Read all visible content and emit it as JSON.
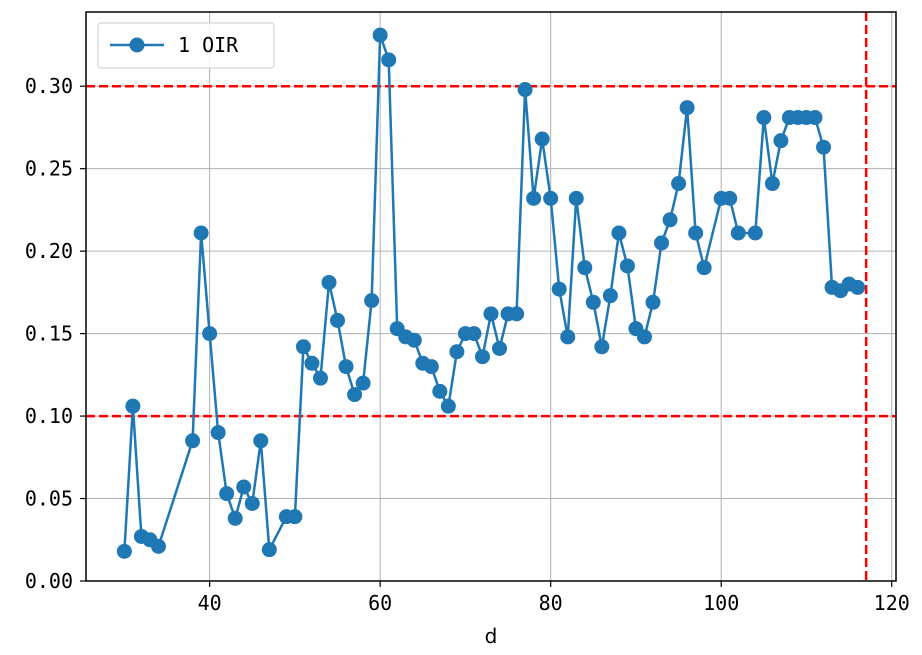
{
  "chart_data": {
    "type": "line",
    "title": "",
    "xlabel": "d",
    "ylabel": "",
    "xlim": [
      25.5,
      120.5
    ],
    "ylim": [
      0.0,
      0.345
    ],
    "xticks": [
      40,
      60,
      80,
      100,
      120
    ],
    "yticks": [
      0.0,
      0.05,
      0.1,
      0.15,
      0.2,
      0.25,
      0.3
    ],
    "ytick_labels": [
      "0.00",
      "0.05",
      "0.10",
      "0.15",
      "0.20",
      "0.25",
      "0.30"
    ],
    "grid": true,
    "legend": {
      "position": "top-left"
    },
    "series": [
      {
        "name": "1 OIR",
        "color": "#1f77b4",
        "marker": "circle",
        "x": [
          30,
          31,
          32,
          33,
          34,
          38,
          39,
          40,
          41,
          42,
          43,
          44,
          45,
          46,
          47,
          49,
          50,
          51,
          52,
          53,
          54,
          55,
          56,
          57,
          58,
          59,
          60,
          61,
          62,
          63,
          64,
          65,
          66,
          67,
          68,
          69,
          70,
          71,
          72,
          73,
          74,
          75,
          76,
          77,
          78,
          79,
          80,
          81,
          82,
          83,
          84,
          85,
          86,
          87,
          88,
          89,
          90,
          91,
          92,
          93,
          94,
          95,
          96,
          97,
          98,
          100,
          101,
          102,
          104,
          105,
          106,
          107,
          108,
          109,
          110,
          111,
          112,
          113,
          114,
          115,
          116
        ],
        "y": [
          0.018,
          0.106,
          0.027,
          0.025,
          0.021,
          0.085,
          0.211,
          0.15,
          0.09,
          0.053,
          0.038,
          0.057,
          0.047,
          0.085,
          0.019,
          0.039,
          0.039,
          0.142,
          0.132,
          0.123,
          0.181,
          0.158,
          0.13,
          0.113,
          0.12,
          0.17,
          0.331,
          0.316,
          0.153,
          0.148,
          0.146,
          0.132,
          0.13,
          0.115,
          0.106,
          0.139,
          0.15,
          0.15,
          0.136,
          0.162,
          0.141,
          0.162,
          0.162,
          0.298,
          0.232,
          0.268,
          0.232,
          0.177,
          0.148,
          0.232,
          0.19,
          0.169,
          0.142,
          0.173,
          0.211,
          0.191,
          0.153,
          0.148,
          0.169,
          0.205,
          0.219,
          0.241,
          0.287,
          0.211,
          0.19,
          0.232,
          0.232,
          0.211,
          0.211,
          0.281,
          0.241,
          0.267,
          0.281,
          0.281,
          0.281,
          0.281,
          0.263,
          0.178,
          0.176,
          0.18,
          0.178
        ]
      }
    ],
    "reference_lines": [
      {
        "orientation": "horizontal",
        "value": 0.3,
        "color": "#ff0000",
        "style": "dashed"
      },
      {
        "orientation": "horizontal",
        "value": 0.1,
        "color": "#ff0000",
        "style": "dashed"
      },
      {
        "orientation": "vertical",
        "value": 117,
        "color": "#ff0000",
        "style": "dashed"
      }
    ]
  }
}
